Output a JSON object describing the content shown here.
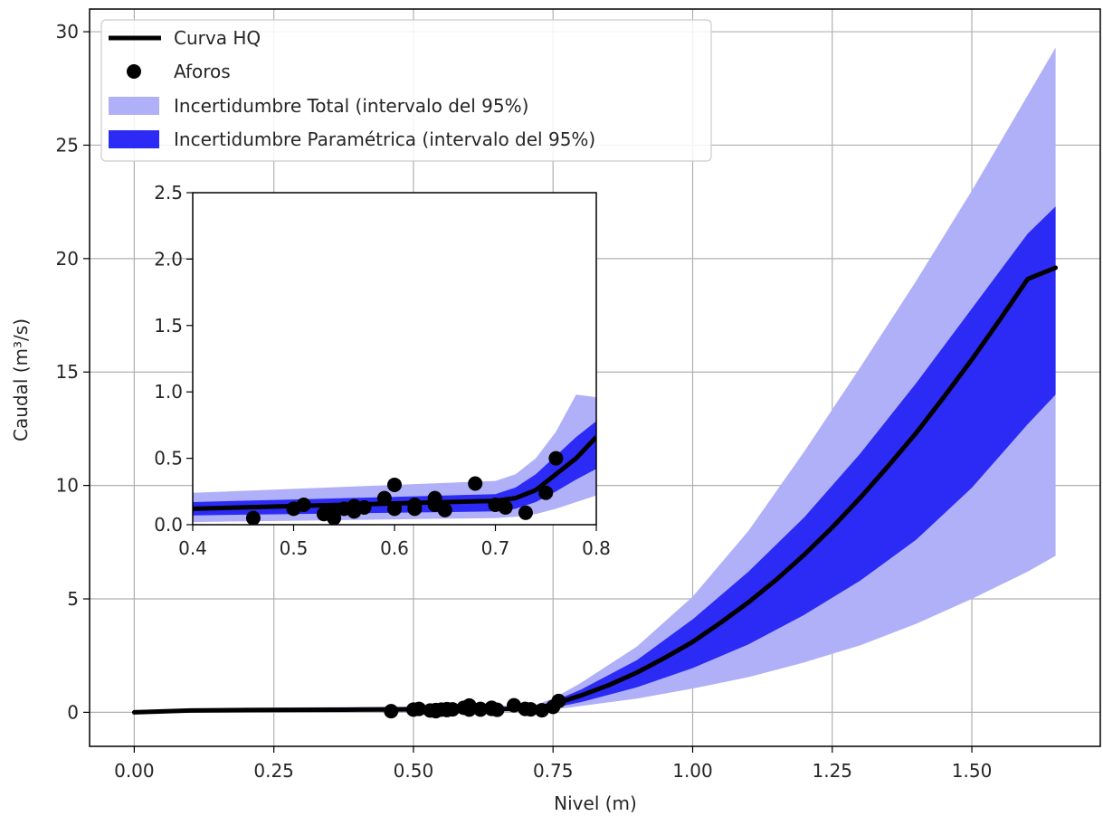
{
  "chart_data": {
    "type": "line",
    "xlabel": "Nivel (m)",
    "ylabel": "Caudal (m³/s)",
    "xlim": [
      -0.08,
      1.73
    ],
    "ylim": [
      -1.5,
      31.0
    ],
    "grid": true,
    "legend_position": "top-left",
    "x_ticks": [
      "0.00",
      "0.25",
      "0.50",
      "0.75",
      "1.00",
      "1.25",
      "1.50"
    ],
    "x_tick_values": [
      0,
      0.25,
      0.5,
      0.75,
      1.0,
      1.25,
      1.5
    ],
    "y_ticks": [
      "0",
      "5",
      "10",
      "15",
      "20",
      "25",
      "30"
    ],
    "y_tick_values": [
      0,
      5,
      10,
      15,
      20,
      25,
      30
    ],
    "series": [
      {
        "name": "Curva HQ",
        "kind": "line",
        "color": "#000000",
        "x": [
          0.0,
          0.1,
          0.2,
          0.3,
          0.4,
          0.5,
          0.6,
          0.7,
          0.72,
          0.75,
          0.8,
          0.85,
          0.9,
          0.95,
          1.0,
          1.05,
          1.1,
          1.15,
          1.2,
          1.25,
          1.3,
          1.35,
          1.4,
          1.45,
          1.5,
          1.55,
          1.6,
          1.65
        ],
        "y": [
          0.0,
          0.08,
          0.1,
          0.11,
          0.12,
          0.13,
          0.14,
          0.15,
          0.17,
          0.35,
          0.74,
          1.2,
          1.75,
          2.4,
          3.1,
          3.95,
          4.85,
          5.85,
          6.95,
          8.15,
          9.45,
          10.85,
          12.3,
          13.9,
          15.55,
          17.3,
          19.1,
          19.6
        ]
      },
      {
        "name": "Aforos",
        "kind": "scatter",
        "color": "#000000",
        "x": [
          0.46,
          0.5,
          0.51,
          0.53,
          0.54,
          0.54,
          0.55,
          0.56,
          0.56,
          0.57,
          0.59,
          0.6,
          0.6,
          0.62,
          0.62,
          0.64,
          0.64,
          0.65,
          0.68,
          0.7,
          0.71,
          0.73,
          0.75,
          0.76
        ],
        "y": [
          0.05,
          0.12,
          0.15,
          0.08,
          0.1,
          0.05,
          0.12,
          0.14,
          0.1,
          0.13,
          0.2,
          0.3,
          0.12,
          0.15,
          0.12,
          0.2,
          0.15,
          0.11,
          0.31,
          0.15,
          0.13,
          0.09,
          0.24,
          0.5
        ]
      },
      {
        "name": "Incertidumbre Total (intervalo del 95%)",
        "kind": "band",
        "color": "#b0b0f8",
        "x": [
          0.0,
          0.2,
          0.4,
          0.6,
          0.7,
          0.72,
          0.75,
          0.8,
          0.9,
          1.0,
          1.1,
          1.2,
          1.3,
          1.4,
          1.5,
          1.6,
          1.65
        ],
        "lower": [
          0.0,
          0.02,
          0.04,
          0.06,
          0.07,
          0.08,
          0.12,
          0.28,
          0.6,
          1.05,
          1.55,
          2.2,
          2.95,
          3.9,
          5.0,
          6.2,
          6.9
        ],
        "upper": [
          0.1,
          0.2,
          0.24,
          0.28,
          0.3,
          0.34,
          0.6,
          1.3,
          2.9,
          5.1,
          8.0,
          11.5,
          15.2,
          19.0,
          23.0,
          27.2,
          29.3
        ]
      },
      {
        "name": "Incertidumbre Paramétrica (intervalo del 95%)",
        "kind": "band",
        "color": "#2b2bf5",
        "x": [
          0.0,
          0.2,
          0.4,
          0.6,
          0.7,
          0.72,
          0.75,
          0.8,
          0.9,
          1.0,
          1.1,
          1.2,
          1.3,
          1.4,
          1.5,
          1.6,
          1.65
        ],
        "lower": [
          0.02,
          0.05,
          0.07,
          0.09,
          0.1,
          0.11,
          0.2,
          0.45,
          1.1,
          1.95,
          3.0,
          4.3,
          5.8,
          7.6,
          9.9,
          12.7,
          14.0
        ],
        "upper": [
          0.07,
          0.14,
          0.16,
          0.18,
          0.2,
          0.24,
          0.48,
          1.0,
          2.3,
          4.1,
          6.2,
          8.6,
          11.4,
          14.5,
          17.8,
          21.1,
          22.3
        ]
      }
    ],
    "inset": {
      "xlim": [
        0.4,
        0.8
      ],
      "ylim": [
        0.0,
        2.5
      ],
      "grid": false,
      "x_ticks": [
        "0.4",
        "0.5",
        "0.6",
        "0.7",
        "0.8"
      ],
      "x_tick_values": [
        0.4,
        0.5,
        0.6,
        0.7,
        0.8
      ],
      "y_ticks": [
        "0.0",
        "0.5",
        "1.0",
        "1.5",
        "2.0",
        "2.5"
      ],
      "y_tick_values": [
        0.0,
        0.5,
        1.0,
        1.5,
        2.0,
        2.5
      ],
      "line": {
        "x": [
          0.4,
          0.45,
          0.5,
          0.55,
          0.6,
          0.65,
          0.7,
          0.72,
          0.74,
          0.76,
          0.78,
          0.8
        ],
        "y": [
          0.12,
          0.13,
          0.14,
          0.15,
          0.16,
          0.17,
          0.18,
          0.2,
          0.26,
          0.38,
          0.5,
          0.66
        ]
      },
      "band_total": {
        "x": [
          0.4,
          0.5,
          0.6,
          0.7,
          0.72,
          0.74,
          0.76,
          0.78,
          0.8
        ],
        "lower": [
          0.02,
          0.03,
          0.04,
          0.05,
          0.06,
          0.08,
          0.12,
          0.17,
          0.22
        ],
        "upper": [
          0.24,
          0.27,
          0.3,
          0.33,
          0.38,
          0.5,
          0.7,
          0.98,
          0.96
        ]
      },
      "band_param": {
        "x": [
          0.4,
          0.5,
          0.6,
          0.7,
          0.72,
          0.74,
          0.76,
          0.78,
          0.8
        ],
        "lower": [
          0.07,
          0.08,
          0.09,
          0.1,
          0.12,
          0.17,
          0.25,
          0.34,
          0.42
        ],
        "upper": [
          0.17,
          0.19,
          0.21,
          0.23,
          0.28,
          0.38,
          0.52,
          0.66,
          0.78
        ]
      },
      "points": {
        "x": [
          0.46,
          0.5,
          0.51,
          0.53,
          0.54,
          0.54,
          0.55,
          0.56,
          0.56,
          0.57,
          0.59,
          0.6,
          0.6,
          0.62,
          0.62,
          0.64,
          0.64,
          0.65,
          0.68,
          0.7,
          0.71,
          0.73,
          0.75,
          0.76
        ],
        "y": [
          0.05,
          0.12,
          0.15,
          0.08,
          0.1,
          0.05,
          0.12,
          0.14,
          0.1,
          0.13,
          0.2,
          0.3,
          0.12,
          0.15,
          0.12,
          0.2,
          0.15,
          0.11,
          0.31,
          0.15,
          0.13,
          0.09,
          0.24,
          0.5
        ]
      }
    }
  }
}
